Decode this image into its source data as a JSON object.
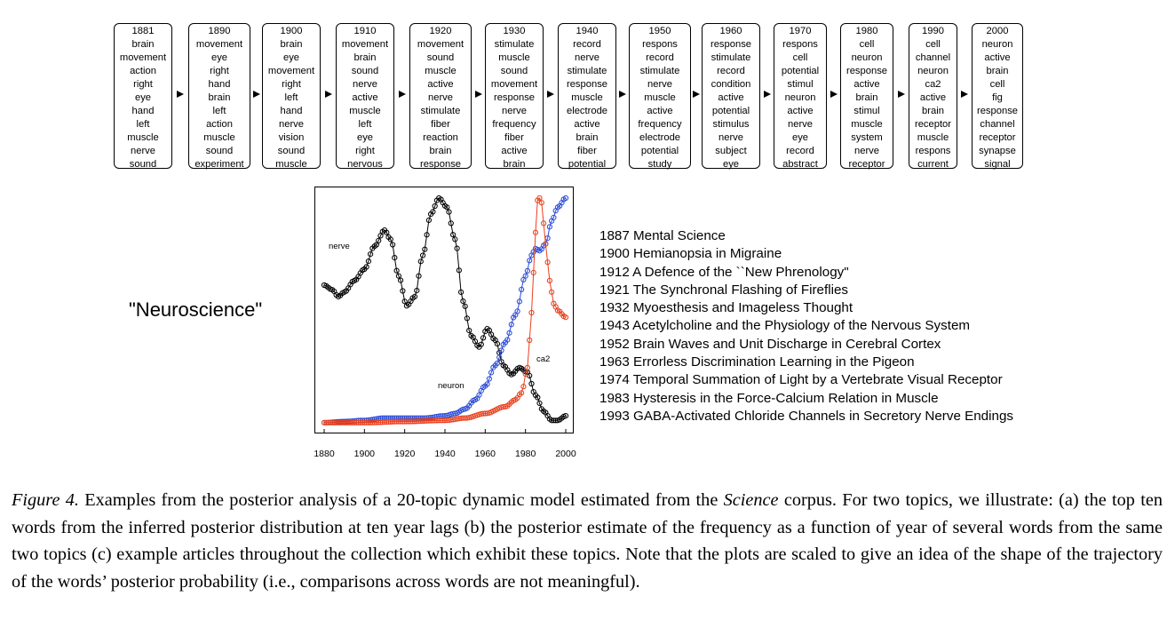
{
  "topic_boxes": [
    {
      "year": "1881",
      "words": [
        "brain",
        "movement",
        "action",
        "right",
        "eye",
        "hand",
        "left",
        "muscle",
        "nerve",
        "sound"
      ]
    },
    {
      "year": "1890",
      "words": [
        "movement",
        "eye",
        "right",
        "hand",
        "brain",
        "left",
        "action",
        "muscle",
        "sound",
        "experiment"
      ]
    },
    {
      "year": "1900",
      "words": [
        "brain",
        "eye",
        "movement",
        "right",
        "left",
        "hand",
        "nerve",
        "vision",
        "sound",
        "muscle"
      ]
    },
    {
      "year": "1910",
      "words": [
        "movement",
        "brain",
        "sound",
        "nerve",
        "active",
        "muscle",
        "left",
        "eye",
        "right",
        "nervous"
      ]
    },
    {
      "year": "1920",
      "words": [
        "movement",
        "sound",
        "muscle",
        "active",
        "nerve",
        "stimulate",
        "fiber",
        "reaction",
        "brain",
        "response"
      ]
    },
    {
      "year": "1930",
      "words": [
        "stimulate",
        "muscle",
        "sound",
        "movement",
        "response",
        "nerve",
        "frequency",
        "fiber",
        "active",
        "brain"
      ]
    },
    {
      "year": "1940",
      "words": [
        "record",
        "nerve",
        "stimulate",
        "response",
        "muscle",
        "electrode",
        "active",
        "brain",
        "fiber",
        "potential"
      ]
    },
    {
      "year": "1950",
      "words": [
        "respons",
        "record",
        "stimulate",
        "nerve",
        "muscle",
        "active",
        "frequency",
        "electrode",
        "potential",
        "study"
      ]
    },
    {
      "year": "1960",
      "words": [
        "response",
        "stimulate",
        "record",
        "condition",
        "active",
        "potential",
        "stimulus",
        "nerve",
        "subject",
        "eye"
      ]
    },
    {
      "year": "1970",
      "words": [
        "respons",
        "cell",
        "potential",
        "stimul",
        "neuron",
        "active",
        "nerve",
        "eye",
        "record",
        "abstract"
      ]
    },
    {
      "year": "1980",
      "words": [
        "cell",
        "neuron",
        "response",
        "active",
        "brain",
        "stimul",
        "muscle",
        "system",
        "nerve",
        "receptor"
      ]
    },
    {
      "year": "1990",
      "words": [
        "cell",
        "channel",
        "neuron",
        "ca2",
        "active",
        "brain",
        "receptor",
        "muscle",
        "respons",
        "current"
      ]
    },
    {
      "year": "2000",
      "words": [
        "neuron",
        "active",
        "brain",
        "cell",
        "fig",
        "response",
        "channel",
        "receptor",
        "synapse",
        "signal"
      ]
    }
  ],
  "topic_label": "\"Neuroscience\"",
  "chart_data": {
    "type": "line",
    "x_ticks": [
      "1880",
      "1900",
      "1920",
      "1940",
      "1960",
      "1980",
      "2000"
    ],
    "xlim": [
      1880,
      2000
    ],
    "annotations": [
      "nerve",
      "neuron",
      "ca2"
    ],
    "series": [
      {
        "name": "nerve",
        "color": "#000000",
        "x": [
          1880,
          1884,
          1887,
          1890,
          1895,
          1900,
          1905,
          1910,
          1913,
          1917,
          1921,
          1925,
          1929,
          1933,
          1937,
          1941,
          1945,
          1949,
          1953,
          1957,
          1961,
          1965,
          1969,
          1973,
          1977,
          1981,
          1985,
          1989,
          1993,
          1996,
          2000
        ],
        "y": [
          0.62,
          0.6,
          0.57,
          0.59,
          0.64,
          0.69,
          0.79,
          0.86,
          0.82,
          0.66,
          0.53,
          0.57,
          0.75,
          0.93,
          1.0,
          0.96,
          0.82,
          0.55,
          0.4,
          0.35,
          0.43,
          0.38,
          0.27,
          0.23,
          0.26,
          0.24,
          0.14,
          0.07,
          0.03,
          0.03,
          0.05
        ]
      },
      {
        "name": "neuron",
        "color": "#2a4bd7",
        "x": [
          1880,
          1890,
          1900,
          1910,
          1920,
          1930,
          1940,
          1945,
          1950,
          1955,
          1960,
          1965,
          1970,
          1975,
          1980,
          1983,
          1985,
          1987,
          1990,
          1993,
          1996,
          2000
        ],
        "y": [
          0.02,
          0.025,
          0.03,
          0.04,
          0.04,
          0.04,
          0.05,
          0.06,
          0.08,
          0.12,
          0.18,
          0.27,
          0.37,
          0.49,
          0.66,
          0.75,
          0.78,
          0.77,
          0.8,
          0.9,
          0.96,
          1.0
        ]
      },
      {
        "name": "ca2",
        "color": "#e8401c",
        "x": [
          1880,
          1900,
          1920,
          1940,
          1950,
          1960,
          1970,
          1975,
          1978,
          1981,
          1983,
          1985,
          1986,
          1987,
          1988,
          1990,
          1992,
          1994,
          1996,
          2000
        ],
        "y": [
          0.02,
          0.02,
          0.025,
          0.03,
          0.04,
          0.06,
          0.09,
          0.12,
          0.15,
          0.26,
          0.5,
          0.85,
          0.99,
          1.0,
          0.98,
          0.8,
          0.64,
          0.54,
          0.51,
          0.48
        ]
      }
    ]
  },
  "articles": [
    "1887 Mental Science",
    "1900 Hemianopsia in Migraine",
    "1912 A Defence of the ``New Phrenology\"",
    "1921 The Synchronal Flashing of Fireflies",
    "1932 Myoesthesis and Imageless Thought",
    "1943 Acetylcholine and the Physiology of the Nervous System",
    "1952 Brain Waves and Unit Discharge in Cerebral Cortex",
    "1963 Errorless Discrimination Learning in the Pigeon",
    "1974 Temporal Summation of Light by a Vertebrate Visual Receptor",
    "1983 Hysteresis in the Force-Calcium Relation in Muscle",
    "1993 GABA-Activated Chloride Channels in Secretory Nerve Endings"
  ],
  "caption": {
    "label": "Figure 4.",
    "part1": " Examples from the posterior analysis of a 20-topic dynamic model estimated from the ",
    "journal": "Science",
    "part2": " corpus.  For two topics, we illustrate: (a) the top ten words from the inferred posterior distribution at ten year lags (b) the posterior estimate of the frequency as a function of year of several words from the same two topics (c) example articles throughout the collection which exhibit these topics. Note that the plots are scaled to give an idea of the shape of the trajectory of the words’ posterior probability (i.e., comparisons across words are not meaningful)."
  }
}
